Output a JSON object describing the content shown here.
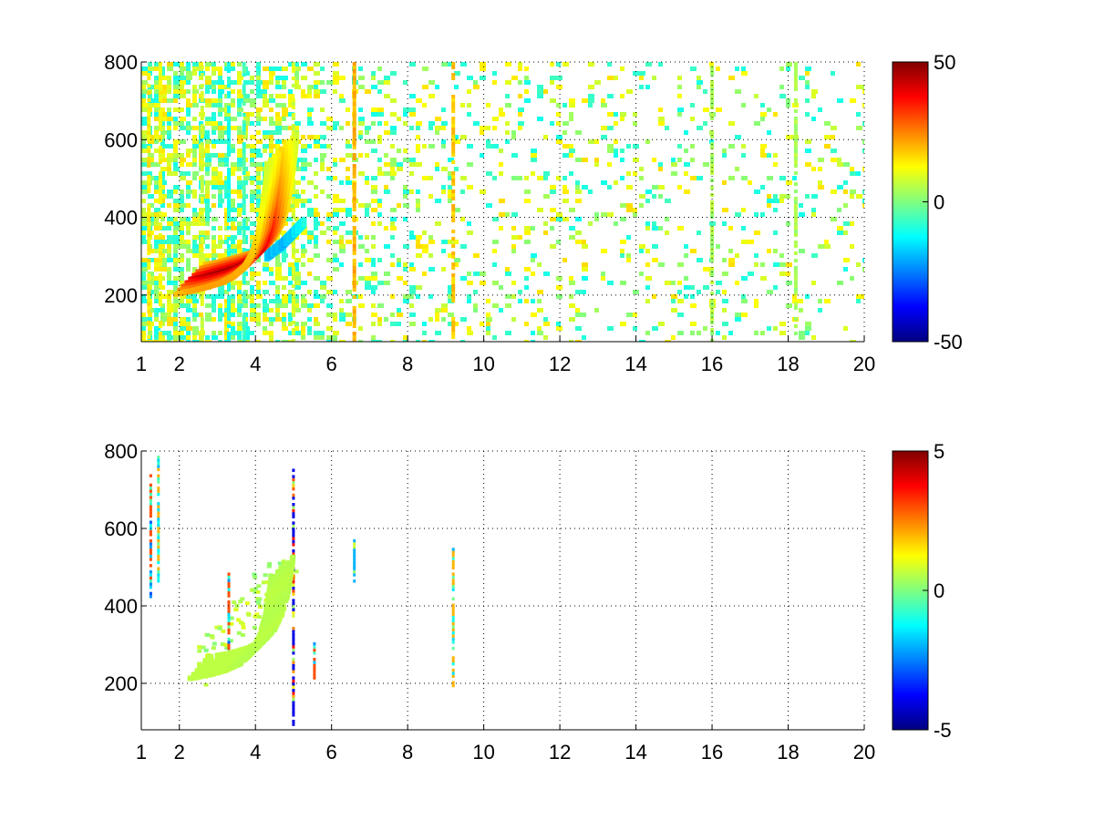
{
  "chart_data": [
    {
      "type": "heatmap",
      "title": "",
      "xlabel": "",
      "ylabel": "",
      "xlim": [
        1,
        20
      ],
      "ylim": [
        80,
        800
      ],
      "xticks": [
        1,
        2,
        4,
        6,
        8,
        10,
        12,
        14,
        16,
        18,
        20
      ],
      "yticks": [
        200,
        400,
        600,
        800
      ],
      "grid": true,
      "grid_style": "dotted",
      "colormap": "jet",
      "clim": [
        -50,
        50
      ],
      "colorbar_ticks": [
        50,
        0,
        -50
      ],
      "colorbar_labels": [
        "50",
        "0",
        "-50"
      ],
      "features": {
        "ridge_curve": [
          {
            "x": 2.3,
            "y": 240,
            "v": 38
          },
          {
            "x": 2.7,
            "y": 248,
            "v": 44
          },
          {
            "x": 3.1,
            "y": 258,
            "v": 46
          },
          {
            "x": 3.5,
            "y": 270,
            "v": 45
          },
          {
            "x": 3.8,
            "y": 285,
            "v": 44
          },
          {
            "x": 4.1,
            "y": 310,
            "v": 42
          },
          {
            "x": 4.3,
            "y": 345,
            "v": 38
          },
          {
            "x": 4.45,
            "y": 390,
            "v": 33
          },
          {
            "x": 4.55,
            "y": 450,
            "v": 26
          },
          {
            "x": 4.65,
            "y": 520,
            "v": 20
          },
          {
            "x": 4.7,
            "y": 580,
            "v": 16
          }
        ],
        "negative_curve": [
          {
            "x": 4.3,
            "y": 300,
            "v": -18
          },
          {
            "x": 4.7,
            "y": 330,
            "v": -20
          },
          {
            "x": 5.0,
            "y": 360,
            "v": -16
          },
          {
            "x": 5.3,
            "y": 390,
            "v": -10
          }
        ],
        "vertical_lines": [
          {
            "x": 1.2,
            "v": 14
          },
          {
            "x": 1.5,
            "v": 12
          },
          {
            "x": 2.6,
            "v": 8
          },
          {
            "x": 3.3,
            "v": -10
          },
          {
            "x": 3.7,
            "v": -6
          },
          {
            "x": 5.0,
            "v": 8
          },
          {
            "x": 6.6,
            "v": 20
          },
          {
            "x": 9.2,
            "v": 18
          },
          {
            "x": 16.0,
            "v": 4
          },
          {
            "x": 18.2,
            "v": 4
          }
        ],
        "noise_density_by_x": [
          [
            1,
            0.8
          ],
          [
            4,
            0.7
          ],
          [
            6,
            0.35
          ],
          [
            10,
            0.18
          ],
          [
            20,
            0.14
          ]
        ]
      }
    },
    {
      "type": "heatmap",
      "title": "",
      "xlabel": "",
      "ylabel": "",
      "xlim": [
        1,
        20
      ],
      "ylim": [
        80,
        800
      ],
      "xticks": [
        1,
        2,
        4,
        6,
        8,
        10,
        12,
        14,
        16,
        18,
        20
      ],
      "yticks": [
        200,
        400,
        600,
        800
      ],
      "grid": true,
      "grid_style": "dotted",
      "colormap": "jet",
      "clim": [
        -5,
        5
      ],
      "colorbar_ticks": [
        5,
        0,
        -5
      ],
      "colorbar_labels": [
        "5",
        "0",
        "-5"
      ],
      "features": {
        "ridge_curve": [
          {
            "x": 2.5,
            "y": 240,
            "v": 0.6
          },
          {
            "x": 3.0,
            "y": 248,
            "v": 0.6
          },
          {
            "x": 3.5,
            "y": 262,
            "v": 0.6
          },
          {
            "x": 3.9,
            "y": 280,
            "v": 0.5
          },
          {
            "x": 4.2,
            "y": 310,
            "v": 0.5
          },
          {
            "x": 4.4,
            "y": 350,
            "v": 0.6
          },
          {
            "x": 4.55,
            "y": 400,
            "v": 0.5
          },
          {
            "x": 4.65,
            "y": 460,
            "v": 0.6
          },
          {
            "x": 4.7,
            "y": 500,
            "v": 0.5
          }
        ],
        "vertical_lines": [
          {
            "x": 1.25,
            "y0": 420,
            "y1": 740,
            "v": 3
          },
          {
            "x": 1.45,
            "y0": 460,
            "y1": 790,
            "v": 2
          },
          {
            "x": 3.3,
            "y0": 270,
            "y1": 480,
            "v": 3
          },
          {
            "x": 5.0,
            "y0": 90,
            "y1": 760,
            "v": -4
          },
          {
            "x": 5.55,
            "y0": 210,
            "y1": 300,
            "v": 3
          },
          {
            "x": 6.6,
            "y0": 460,
            "y1": 570,
            "v": -2
          },
          {
            "x": 9.2,
            "y0": 190,
            "y1": 550,
            "v": 2
          }
        ]
      }
    }
  ]
}
